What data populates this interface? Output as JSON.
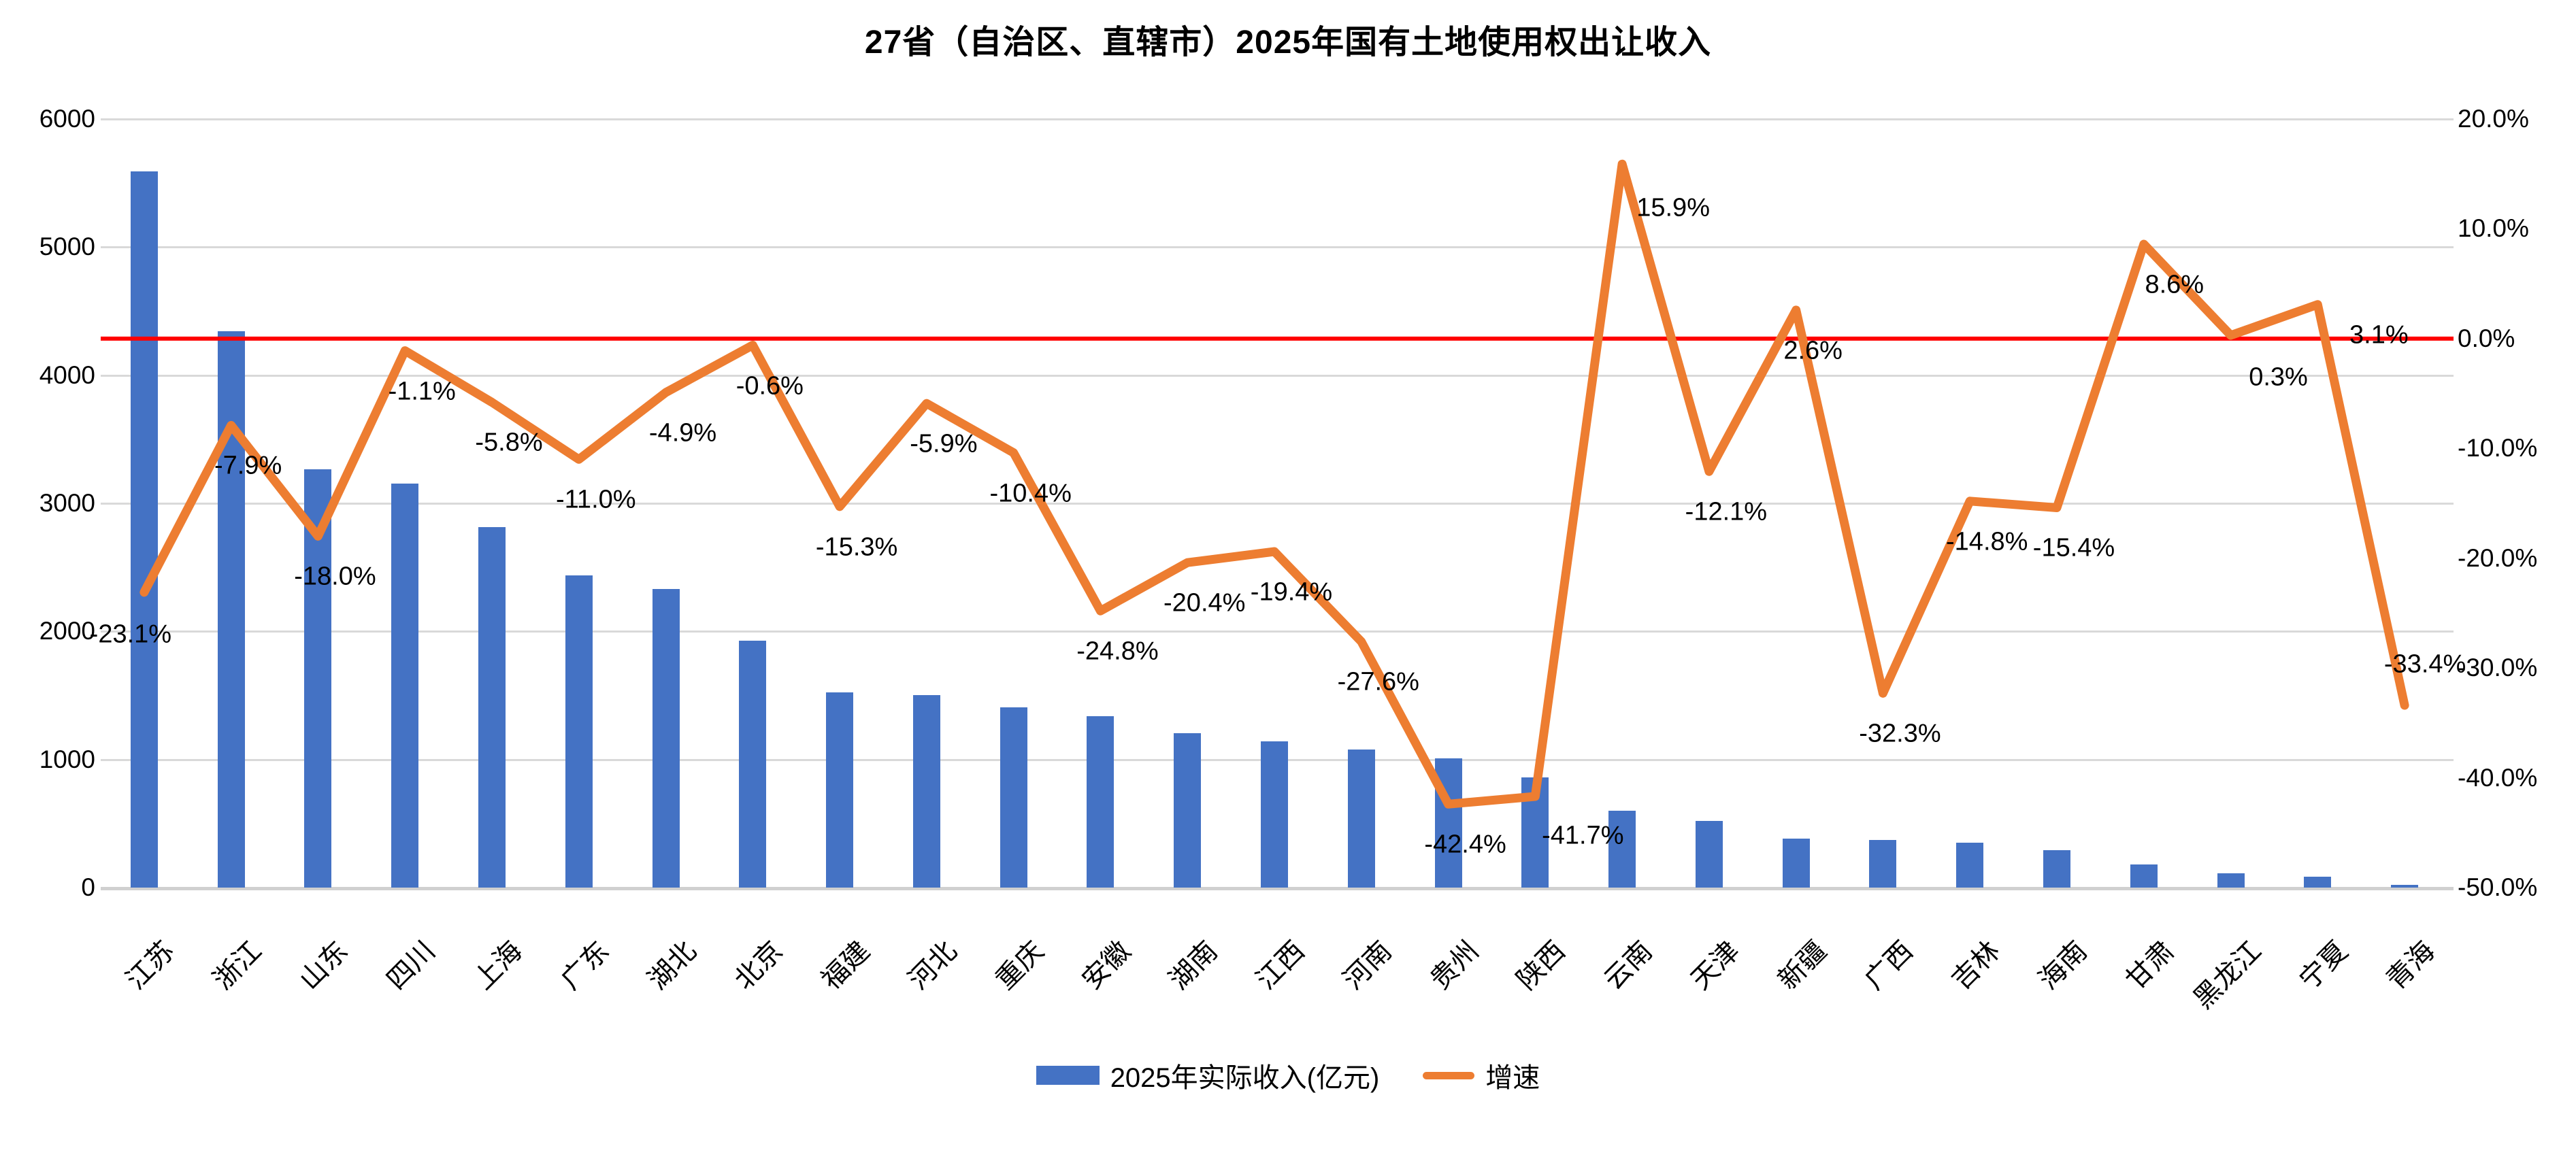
{
  "title": "27省（自治区、直辖市）2025年国有土地使用权出让收入",
  "chart_data": {
    "type": "bar+line",
    "categories": [
      "江苏",
      "浙江",
      "山东",
      "四川",
      "上海",
      "广东",
      "湖北",
      "北京",
      "福建",
      "河北",
      "重庆",
      "安徽",
      "湖南",
      "江西",
      "河南",
      "贵州",
      "陕西",
      "云南",
      "天津",
      "新疆",
      "广西",
      "吉林",
      "海南",
      "甘肃",
      "黑龙江",
      "宁夏",
      "青海"
    ],
    "series": [
      {
        "name": "2025年实际收入(亿元)",
        "type": "bar",
        "axis": "left",
        "color": "#4472C4",
        "values": [
          5590,
          4345,
          3265,
          3155,
          2815,
          2435,
          2330,
          1925,
          1525,
          1505,
          1405,
          1340,
          1205,
          1140,
          1080,
          1010,
          860,
          600,
          520,
          380,
          370,
          350,
          290,
          180,
          110,
          85,
          20
        ]
      },
      {
        "name": "增速",
        "type": "line",
        "axis": "right",
        "color": "#ED7D31",
        "values": [
          -23.1,
          -7.9,
          -18.0,
          -1.1,
          -5.8,
          -11.0,
          -4.9,
          -0.6,
          -15.3,
          -5.9,
          -10.4,
          -24.8,
          -20.4,
          -19.4,
          -27.6,
          -42.4,
          -41.7,
          15.9,
          -12.1,
          2.6,
          -32.3,
          -14.8,
          -15.4,
          8.6,
          0.3,
          3.1,
          -33.4
        ],
        "labels": [
          "-23.1%",
          "-7.9%",
          "-18.0%",
          "-1.1%",
          "-5.8%",
          "-11.0%",
          "-4.9%",
          "-0.6%",
          "-15.3%",
          "-5.9%",
          "-10.4%",
          "-24.8%",
          "-20.4%",
          "-19.4%",
          "-27.6%",
          "-42.4%",
          "-41.7%",
          "15.9%",
          "-12.1%",
          "2.6%",
          "-32.3%",
          "-14.8%",
          "-15.4%",
          "8.6%",
          "0.3%",
          "3.1%",
          "-33.4%"
        ]
      }
    ],
    "left_axis": {
      "min": 0,
      "max": 6000,
      "step": 1000,
      "tick_labels": [
        "0",
        "1000",
        "2000",
        "3000",
        "4000",
        "5000",
        "6000"
      ]
    },
    "right_axis": {
      "min": -50,
      "max": 20,
      "step": 10,
      "tick_labels": [
        "20.0%",
        "10.0%",
        "0.0%",
        "-10.0%",
        "-20.0%",
        "-30.0%",
        "-40.0%",
        "-50.0%"
      ]
    },
    "reference_line": {
      "value_pct": 0.0,
      "color": "#FF0000"
    },
    "grid": true,
    "legend_position": "bottom"
  },
  "legend": {
    "items": [
      {
        "label": "2025年实际收入(亿元)",
        "marker": "bar",
        "color": "#4472C4"
      },
      {
        "label": "增速",
        "marker": "line",
        "color": "#ED7D31"
      }
    ]
  },
  "colors": {
    "bar": "#4472C4",
    "line": "#ED7D31",
    "reference_line": "#FF0000",
    "gridline": "#D9D9D9",
    "text": "#000000"
  }
}
